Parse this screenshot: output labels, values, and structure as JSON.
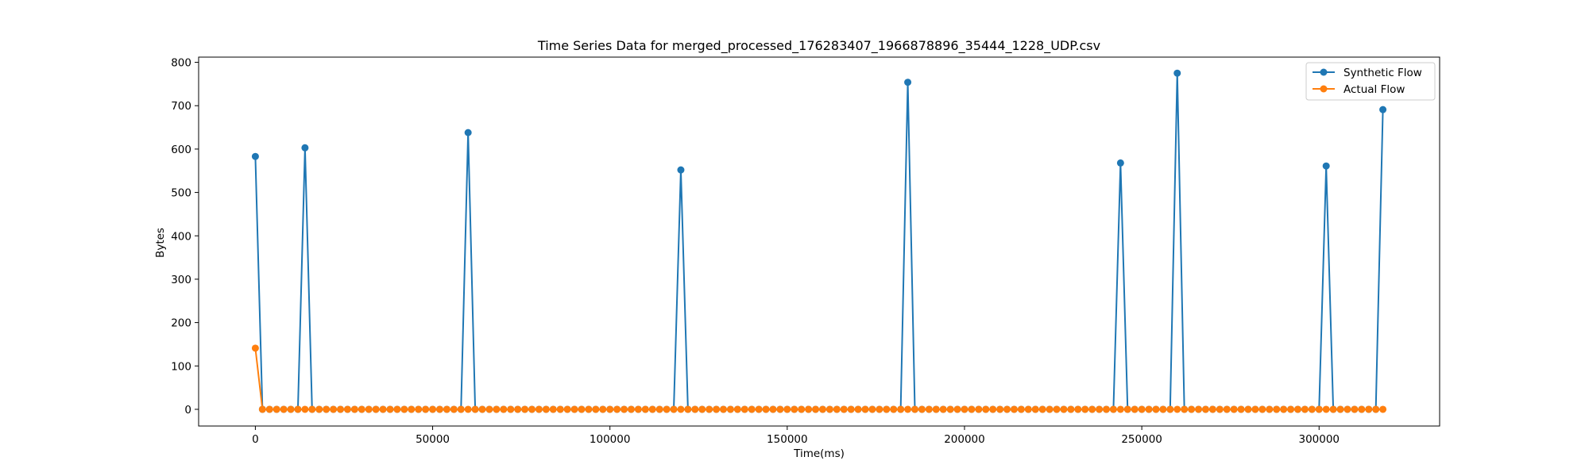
{
  "chart_data": {
    "type": "line",
    "title": "Time Series Data for merged_processed_176283407_1966878896_35444_1228_UDP.csv",
    "xlabel": "Time(ms)",
    "ylabel": "Bytes",
    "xlim": [
      -16000,
      334000
    ],
    "ylim": [
      -38.5,
      812
    ],
    "xticks": [
      0,
      50000,
      100000,
      150000,
      200000,
      250000,
      300000
    ],
    "yticks": [
      0,
      100,
      200,
      300,
      400,
      500,
      600,
      700,
      800
    ],
    "grid": false,
    "legend": "top-right",
    "sample_interval_ms": 2000,
    "series": [
      {
        "name": "Synthetic Flow",
        "color": "#1f77b4",
        "marker": "circle",
        "x": [
          0,
          14000,
          60000,
          120000,
          184000,
          244000,
          260000,
          302000,
          318000
        ],
        "y": [
          583,
          603,
          638,
          552,
          754,
          568,
          775,
          561,
          691
        ],
        "baseline": 0,
        "x_end": 318000
      },
      {
        "name": "Actual Flow",
        "color": "#ff7f0e",
        "marker": "circle",
        "x": [
          0
        ],
        "y": [
          141
        ],
        "baseline": 0,
        "x_end": 318000
      }
    ]
  }
}
